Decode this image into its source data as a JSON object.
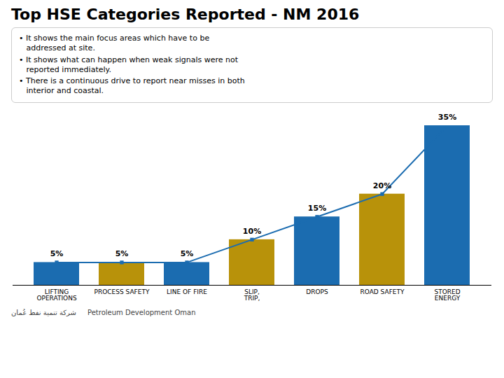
{
  "chart_data": {
    "type": "bar",
    "title": "Top HSE Categories Reported - NM 2016",
    "categories": [
      "LIFTING\nOPERATIONS",
      "PROCESS SAFETY",
      "LINE OF FIRE",
      "SLIP,\nTRIP,",
      "DROPS",
      "ROAD SAFETY",
      "STORED\nENERGY"
    ],
    "values": [
      5,
      5,
      5,
      10,
      15,
      20,
      35
    ],
    "value_labels": [
      "5%",
      "5%",
      "5%",
      "10%",
      "15%",
      "20%",
      "35%"
    ],
    "data_labels": true,
    "colors": [
      "#1b6cb0",
      "#b8920a",
      "#1b6cb0",
      "#b8920a",
      "#1b6cb0",
      "#b8920a",
      "#1b6cb0"
    ],
    "ylim": [
      0,
      35
    ],
    "tick_labels": "x",
    "grid": false,
    "annotations": [
      "• It shows the main focus areas which have to be\n   addressed at site.",
      "• It shows what can happen when weak signals were not\n   reported immediately.",
      "• There is a continuous drive to report near misses in both\n   interior and coastal.",
      "شركة تنمية نفط عُمان",
      "Petroleum Development Oman"
    ]
  }
}
